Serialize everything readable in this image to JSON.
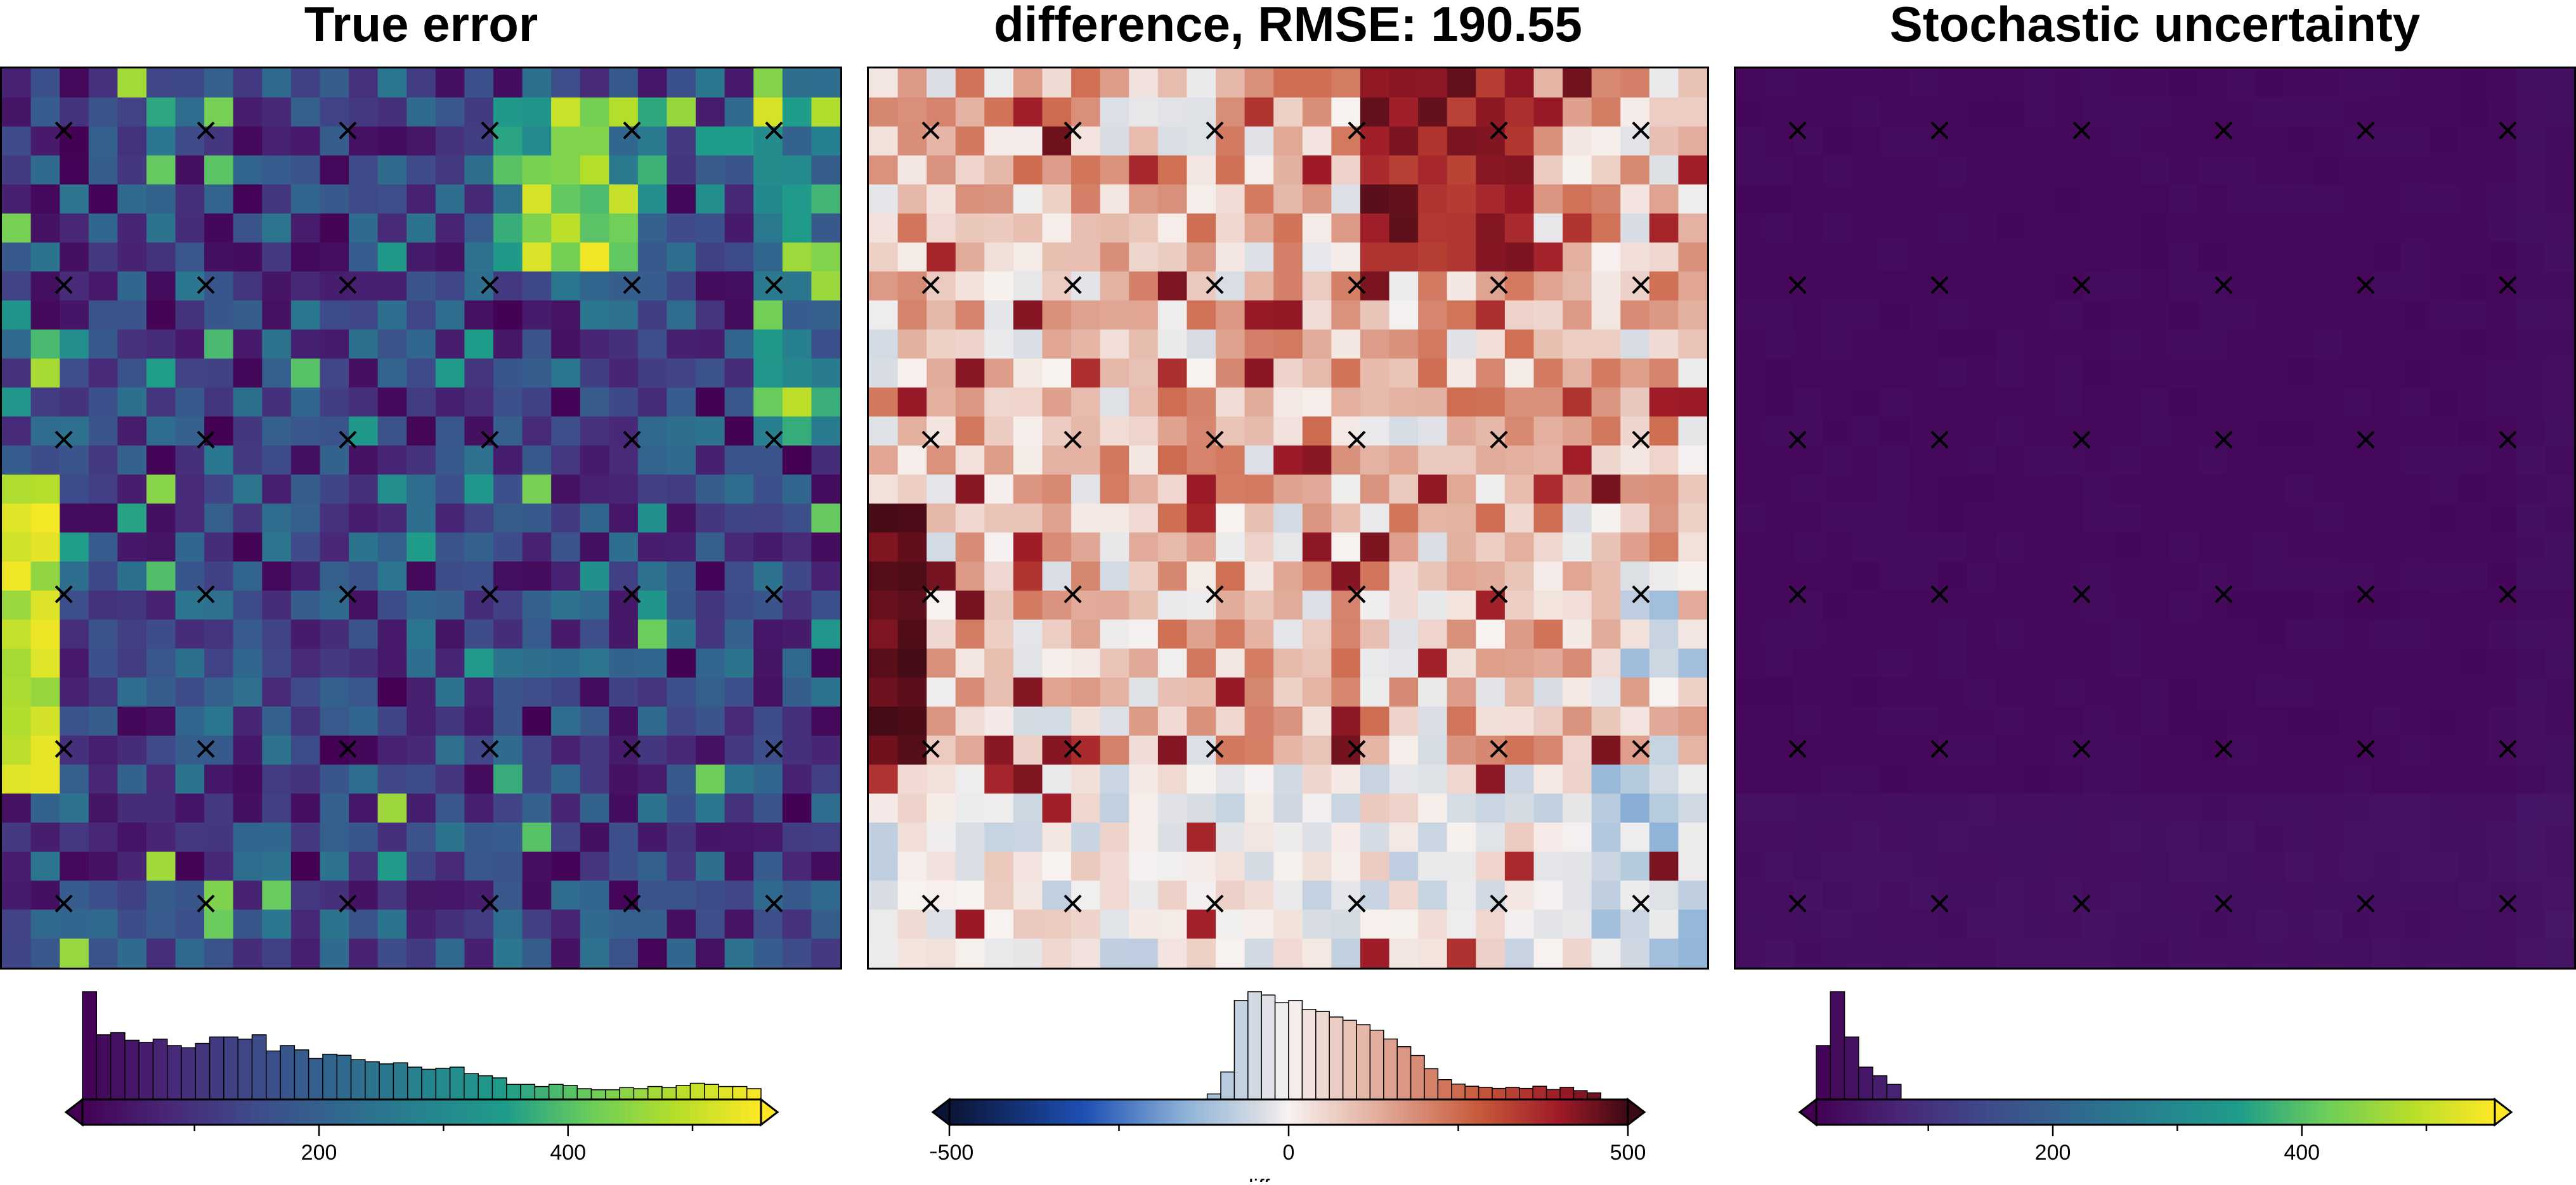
{
  "panels": [
    {
      "id": "true-error",
      "title": "True error",
      "colormap": "viridis",
      "colorbar": {
        "range": [
          10,
          555
        ],
        "major_ticks": [
          200,
          400
        ],
        "minor_ticks": [
          100,
          300,
          500
        ],
        "label": ""
      },
      "histogram": [
        100,
        60,
        62,
        55,
        53,
        56,
        50,
        48,
        52,
        58,
        58,
        56,
        60,
        45,
        50,
        46,
        38,
        42,
        41,
        37,
        35,
        33,
        34,
        30,
        28,
        29,
        30,
        24,
        22,
        20,
        14,
        14,
        12,
        14,
        13,
        10,
        9,
        9,
        11,
        10,
        12,
        11,
        13,
        15,
        14,
        12,
        12,
        10
      ]
    },
    {
      "id": "difference",
      "title": "difference, RMSE: 190.55",
      "colormap": "diverging",
      "colorbar": {
        "range": [
          -500,
          500
        ],
        "major_ticks": [
          -500,
          0,
          500
        ],
        "minor_ticks": [
          -250,
          250
        ],
        "label": "difference"
      },
      "histogram": [
        0,
        0,
        0,
        0,
        0,
        0,
        0,
        0,
        0,
        0,
        0,
        0,
        0,
        0,
        0,
        0,
        0,
        0,
        0,
        5,
        25,
        90,
        98,
        95,
        88,
        90,
        82,
        80,
        75,
        72,
        68,
        63,
        55,
        48,
        40,
        28,
        18,
        14,
        12,
        11,
        10,
        11,
        10,
        12,
        9,
        11,
        8,
        6,
        0,
        0
      ]
    },
    {
      "id": "stochastic-uncertainty",
      "title": "Stochastic uncertainty",
      "colormap": "viridis",
      "colorbar": {
        "range": [
          10,
          555
        ],
        "major_ticks": [
          200,
          400
        ],
        "minor_ticks": [
          100,
          300,
          500
        ],
        "label": ""
      },
      "histogram": [
        50,
        100,
        58,
        30,
        22,
        14,
        0,
        0,
        0,
        0,
        0,
        0,
        0,
        0,
        0,
        0,
        0,
        0,
        0,
        0,
        0,
        0,
        0,
        0,
        0,
        0,
        0,
        0,
        0,
        0,
        0,
        0,
        0,
        0,
        0,
        0,
        0,
        0,
        0,
        0,
        0,
        0,
        0,
        0,
        0,
        0,
        0,
        0
      ]
    }
  ],
  "constraint_marker": "×"
}
